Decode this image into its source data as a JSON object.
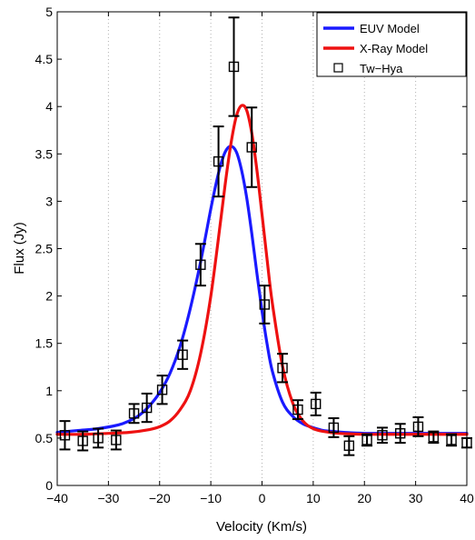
{
  "chart_data": {
    "type": "line",
    "title": "",
    "xlabel": "Velocity (Km/s)",
    "ylabel": "Flux (Jy)",
    "xlim": [
      -40,
      40
    ],
    "ylim": [
      0,
      5
    ],
    "x_ticks": [
      -40,
      -30,
      -20,
      -10,
      0,
      10,
      20,
      30,
      40
    ],
    "x_tick_labels": [
      "−40",
      "−30",
      "−20",
      "−10",
      "0",
      "10",
      "20",
      "30",
      "40"
    ],
    "y_ticks": [
      0,
      0.5,
      1,
      1.5,
      2,
      2.5,
      3,
      3.5,
      4,
      4.5,
      5
    ],
    "y_tick_labels": [
      "0",
      "0.5",
      "1",
      "1.5",
      "2",
      "2.5",
      "3",
      "3.5",
      "4",
      "4.5",
      "5"
    ],
    "grid": "vertical dotted",
    "legend_position": "top-right",
    "series": [
      {
        "name": "EUV Model",
        "kind": "line",
        "color": "#1a1aff",
        "x": [
          -40,
          -36,
          -32,
          -28,
          -26,
          -24,
          -22,
          -20,
          -18,
          -16,
          -14,
          -12,
          -10,
          -9,
          -8,
          -7,
          -6,
          -5,
          -4,
          -3,
          -2,
          -1,
          0,
          1,
          2,
          4,
          6,
          8,
          10,
          12,
          14,
          16,
          20,
          25,
          30,
          35,
          40
        ],
        "y": [
          0.56,
          0.58,
          0.6,
          0.64,
          0.68,
          0.74,
          0.84,
          0.98,
          1.18,
          1.47,
          1.87,
          2.36,
          2.92,
          3.18,
          3.4,
          3.54,
          3.58,
          3.52,
          3.33,
          3.04,
          2.66,
          2.24,
          1.84,
          1.49,
          1.21,
          0.88,
          0.73,
          0.65,
          0.61,
          0.58,
          0.57,
          0.56,
          0.55,
          0.55,
          0.55,
          0.55,
          0.55
        ]
      },
      {
        "name": "X-Ray Model",
        "kind": "line",
        "color": "#ee1111",
        "x": [
          -40,
          -35,
          -30,
          -26,
          -22,
          -20,
          -18,
          -16,
          -14,
          -12,
          -10,
          -8,
          -7,
          -6,
          -5,
          -4,
          -3,
          -2,
          -1,
          0,
          1,
          2,
          4,
          6,
          8,
          10,
          12,
          15,
          20,
          25,
          30,
          35,
          40
        ],
        "y": [
          0.54,
          0.54,
          0.55,
          0.56,
          0.59,
          0.62,
          0.68,
          0.8,
          1.0,
          1.39,
          2.0,
          2.83,
          3.26,
          3.63,
          3.9,
          4.01,
          3.96,
          3.72,
          3.33,
          2.86,
          2.38,
          1.93,
          1.26,
          0.87,
          0.68,
          0.6,
          0.57,
          0.55,
          0.54,
          0.54,
          0.54,
          0.54,
          0.54
        ]
      },
      {
        "name": "Tw−Hya",
        "kind": "errorbar",
        "color": "#000000",
        "marker": "open-square",
        "x": [
          -38.5,
          -35,
          -32,
          -28.5,
          -25,
          -22.5,
          -19.5,
          -15.5,
          -12,
          -8.5,
          -5.5,
          -2,
          0.5,
          4,
          7,
          10.5,
          14,
          17,
          20.5,
          23.5,
          27,
          30.5,
          33.5,
          37,
          40
        ],
        "y": [
          0.53,
          0.47,
          0.5,
          0.48,
          0.76,
          0.82,
          1.01,
          1.38,
          2.33,
          3.42,
          4.42,
          3.57,
          1.91,
          1.24,
          0.8,
          0.86,
          0.61,
          0.42,
          0.48,
          0.53,
          0.55,
          0.62,
          0.51,
          0.48,
          0.45
        ],
        "yerr": [
          0.15,
          0.1,
          0.1,
          0.1,
          0.1,
          0.15,
          0.15,
          0.15,
          0.22,
          0.37,
          0.52,
          0.42,
          0.2,
          0.15,
          0.1,
          0.12,
          0.1,
          0.1,
          0.06,
          0.08,
          0.1,
          0.1,
          0.06,
          0.06,
          0.05
        ]
      }
    ]
  }
}
